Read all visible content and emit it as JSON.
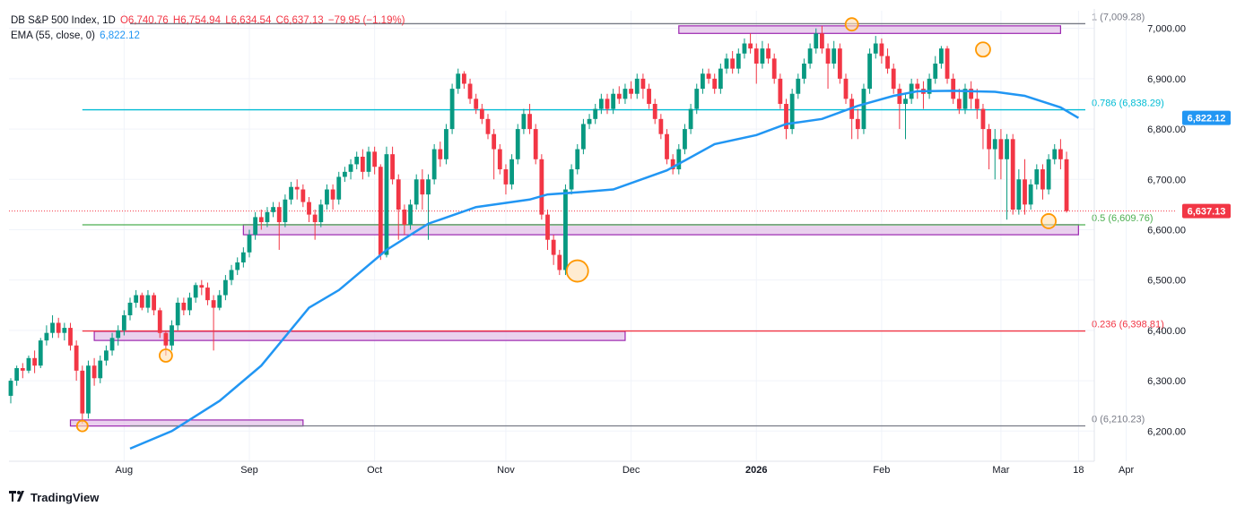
{
  "header": {
    "symbol": "DB S&P 500 Index, 1D",
    "ohlc": [
      "O6,740.76",
      "H6,754.94",
      "L6,634.54",
      "C6,637.13",
      "−79.95 (−1.19%)"
    ],
    "ema_label": "EMA (55, close, 0)",
    "ema_value": "6,822.12"
  },
  "footer": {
    "brand": "TradingView",
    "logo": "tradingview-logo-icon"
  },
  "chart_data": {
    "type": "candlestick",
    "title": "DB S&P 500 Index, 1D",
    "ylim": [
      6140,
      7035
    ],
    "yticks": [
      6200,
      6300,
      6400,
      6500,
      6600,
      6700,
      6800,
      6900,
      7000
    ],
    "ytick_labels": [
      "6,200.00",
      "6,300.00",
      "6,400.00",
      "6,500.00",
      "6,600.00",
      "6,700.00",
      "6,800.00",
      "6,900.00",
      "7,000.00"
    ],
    "xticks": [
      {
        "label": "Aug",
        "idx": 19
      },
      {
        "label": "Sep",
        "idx": 40
      },
      {
        "label": "Oct",
        "idx": 61
      },
      {
        "label": "Nov",
        "idx": 83
      },
      {
        "label": "Dec",
        "idx": 104
      },
      {
        "label": "2026",
        "idx": 125,
        "bold": true
      },
      {
        "label": "Feb",
        "idx": 146
      },
      {
        "label": "Mar",
        "idx": 166
      },
      {
        "label": "18",
        "idx": 179
      },
      {
        "label": "Apr",
        "idx": 187
      }
    ],
    "colors": {
      "up": "#089981",
      "down": "#f23645",
      "ema": "#2196f3",
      "zone_fill": "#e1bee7",
      "zone_stroke": "#9c27b0",
      "marker": "#ff9800"
    },
    "ema": [
      [
        20,
        6165
      ],
      [
        27,
        6200
      ],
      [
        35,
        6260
      ],
      [
        42,
        6330
      ],
      [
        50,
        6445
      ],
      [
        55,
        6480
      ],
      [
        63,
        6560
      ],
      [
        70,
        6612
      ],
      [
        72,
        6620
      ],
      [
        78,
        6645
      ],
      [
        87,
        6660
      ],
      [
        90,
        6670
      ],
      [
        96,
        6675
      ],
      [
        101,
        6680
      ],
      [
        110,
        6718
      ],
      [
        118,
        6770
      ],
      [
        125,
        6788
      ],
      [
        130,
        6810
      ],
      [
        136,
        6820
      ],
      [
        142,
        6846
      ],
      [
        148,
        6866
      ],
      [
        152,
        6875
      ],
      [
        158,
        6876
      ],
      [
        165,
        6874
      ],
      [
        170,
        6866
      ],
      [
        176,
        6843
      ],
      [
        179,
        6822
      ]
    ],
    "fib_levels": [
      {
        "ratio": "1",
        "value": 7009.28,
        "label": "1 (7,009.28)",
        "color": "#787b86",
        "from_idx": 20
      },
      {
        "ratio": "0.786",
        "value": 6838.29,
        "label": "0.786 (6,838.29)",
        "color": "#00bcd4",
        "from_idx": 12
      },
      {
        "ratio": "0.5",
        "value": 6609.76,
        "label": "0.5 (6,609.76)",
        "color": "#4caf50",
        "from_idx": 12
      },
      {
        "ratio": "0.236",
        "value": 6398.81,
        "label": "0.236 (6,398.81)",
        "color": "#f23645",
        "from_idx": 12
      },
      {
        "ratio": "0",
        "value": 6210.23,
        "label": "0 (6,210.23)",
        "color": "#787b86",
        "from_idx": 20
      }
    ],
    "zones": [
      {
        "from_idx": 112,
        "to_idx": 176,
        "y_top": 7005,
        "y_bottom": 6990
      },
      {
        "from_idx": 39,
        "to_idx": 179,
        "y_top": 6610,
        "y_bottom": 6590
      },
      {
        "from_idx": 14,
        "to_idx": 103,
        "y_top": 6398,
        "y_bottom": 6380
      },
      {
        "from_idx": 10,
        "to_idx": 49,
        "y_top": 6222,
        "y_bottom": 6210
      }
    ],
    "markers": [
      {
        "idx": 12,
        "value": 6210,
        "r": 6
      },
      {
        "idx": 26,
        "value": 6350,
        "r": 7
      },
      {
        "idx": 95,
        "value": 6518,
        "r": 12
      },
      {
        "idx": 141,
        "value": 7008,
        "r": 7
      },
      {
        "idx": 163,
        "value": 6958,
        "r": 8
      },
      {
        "idx": 174,
        "value": 6617,
        "r": 8
      }
    ],
    "last_price": {
      "value": 6637.13,
      "label": "6,637.13",
      "color": "#f23645"
    },
    "ema_tag": {
      "value": 6822.12,
      "label": "6,822.12",
      "color": "#2196f3"
    },
    "candles": [
      [
        6270,
        6300,
        6255,
        6305
      ],
      [
        6300,
        6325,
        6290,
        6330
      ],
      [
        6325,
        6320,
        6305,
        6335
      ],
      [
        6320,
        6345,
        6315,
        6350
      ],
      [
        6345,
        6330,
        6315,
        6360
      ],
      [
        6330,
        6380,
        6325,
        6385
      ],
      [
        6380,
        6395,
        6370,
        6410
      ],
      [
        6395,
        6415,
        6385,
        6430
      ],
      [
        6415,
        6395,
        6385,
        6425
      ],
      [
        6395,
        6405,
        6380,
        6415
      ],
      [
        6405,
        6370,
        6360,
        6415
      ],
      [
        6370,
        6320,
        6300,
        6380
      ],
      [
        6320,
        6235,
        6215,
        6330
      ],
      [
        6235,
        6330,
        6225,
        6340
      ],
      [
        6330,
        6305,
        6290,
        6345
      ],
      [
        6305,
        6340,
        6295,
        6350
      ],
      [
        6340,
        6360,
        6330,
        6370
      ],
      [
        6360,
        6385,
        6350,
        6395
      ],
      [
        6385,
        6400,
        6370,
        6410
      ],
      [
        6400,
        6430,
        6390,
        6440
      ],
      [
        6430,
        6455,
        6420,
        6465
      ],
      [
        6455,
        6470,
        6445,
        6480
      ],
      [
        6470,
        6445,
        6440,
        6475
      ],
      [
        6445,
        6470,
        6435,
        6480
      ],
      [
        6470,
        6440,
        6430,
        6475
      ],
      [
        6440,
        6395,
        6385,
        6445
      ],
      [
        6395,
        6370,
        6350,
        6400
      ],
      [
        6370,
        6410,
        6360,
        6420
      ],
      [
        6410,
        6455,
        6400,
        6465
      ],
      [
        6455,
        6440,
        6430,
        6465
      ],
      [
        6440,
        6465,
        6430,
        6475
      ],
      [
        6465,
        6490,
        6455,
        6495
      ],
      [
        6490,
        6485,
        6470,
        6500
      ],
      [
        6485,
        6460,
        6450,
        6495
      ],
      [
        6460,
        6445,
        6360,
        6470
      ],
      [
        6445,
        6470,
        6440,
        6480
      ],
      [
        6470,
        6500,
        6460,
        6510
      ],
      [
        6500,
        6520,
        6490,
        6530
      ],
      [
        6520,
        6535,
        6510,
        6545
      ],
      [
        6535,
        6555,
        6525,
        6565
      ],
      [
        6555,
        6590,
        6545,
        6600
      ],
      [
        6590,
        6625,
        6580,
        6635
      ],
      [
        6625,
        6615,
        6600,
        6640
      ],
      [
        6615,
        6635,
        6605,
        6645
      ],
      [
        6635,
        6645,
        6625,
        6655
      ],
      [
        6645,
        6615,
        6560,
        6655
      ],
      [
        6615,
        6660,
        6605,
        6670
      ],
      [
        6660,
        6685,
        6650,
        6695
      ],
      [
        6685,
        6680,
        6660,
        6700
      ],
      [
        6680,
        6655,
        6645,
        6690
      ],
      [
        6655,
        6630,
        6615,
        6665
      ],
      [
        6630,
        6615,
        6580,
        6640
      ],
      [
        6615,
        6650,
        6605,
        6660
      ],
      [
        6650,
        6680,
        6640,
        6690
      ],
      [
        6680,
        6660,
        6640,
        6690
      ],
      [
        6660,
        6705,
        6650,
        6715
      ],
      [
        6705,
        6715,
        6695,
        6725
      ],
      [
        6715,
        6730,
        6700,
        6740
      ],
      [
        6730,
        6745,
        6720,
        6755
      ],
      [
        6745,
        6715,
        6700,
        6760
      ],
      [
        6715,
        6755,
        6705,
        6765
      ],
      [
        6755,
        6725,
        6710,
        6765
      ],
      [
        6725,
        6550,
        6540,
        6730
      ],
      [
        6550,
        6750,
        6545,
        6765
      ],
      [
        6750,
        6700,
        6690,
        6765
      ],
      [
        6700,
        6640,
        6580,
        6710
      ],
      [
        6640,
        6610,
        6590,
        6650
      ],
      [
        6610,
        6650,
        6600,
        6660
      ],
      [
        6650,
        6700,
        6640,
        6710
      ],
      [
        6700,
        6670,
        6640,
        6720
      ],
      [
        6670,
        6700,
        6580,
        6710
      ],
      [
        6700,
        6760,
        6690,
        6770
      ],
      [
        6760,
        6740,
        6725,
        6775
      ],
      [
        6740,
        6800,
        6730,
        6810
      ],
      [
        6800,
        6880,
        6790,
        6890
      ],
      [
        6880,
        6910,
        6870,
        6920
      ],
      [
        6910,
        6890,
        6880,
        6915
      ],
      [
        6890,
        6860,
        6850,
        6900
      ],
      [
        6860,
        6840,
        6830,
        6870
      ],
      [
        6840,
        6820,
        6810,
        6850
      ],
      [
        6820,
        6790,
        6780,
        6830
      ],
      [
        6790,
        6760,
        6700,
        6800
      ],
      [
        6760,
        6720,
        6710,
        6770
      ],
      [
        6720,
        6690,
        6670,
        6730
      ],
      [
        6690,
        6740,
        6680,
        6750
      ],
      [
        6740,
        6800,
        6730,
        6810
      ],
      [
        6800,
        6830,
        6790,
        6840
      ],
      [
        6830,
        6800,
        6790,
        6850
      ],
      [
        6800,
        6740,
        6730,
        6810
      ],
      [
        6740,
        6630,
        6620,
        6750
      ],
      [
        6630,
        6580,
        6560,
        6640
      ],
      [
        6580,
        6550,
        6530,
        6590
      ],
      [
        6550,
        6520,
        6510,
        6560
      ],
      [
        6520,
        6680,
        6510,
        6690
      ],
      [
        6680,
        6720,
        6670,
        6730
      ],
      [
        6720,
        6760,
        6710,
        6770
      ],
      [
        6760,
        6810,
        6750,
        6820
      ],
      [
        6810,
        6820,
        6800,
        6830
      ],
      [
        6820,
        6840,
        6810,
        6850
      ],
      [
        6840,
        6860,
        6830,
        6870
      ],
      [
        6860,
        6840,
        6830,
        6870
      ],
      [
        6840,
        6870,
        6830,
        6880
      ],
      [
        6870,
        6860,
        6850,
        6885
      ],
      [
        6860,
        6880,
        6850,
        6890
      ],
      [
        6880,
        6870,
        6860,
        6895
      ],
      [
        6870,
        6900,
        6860,
        6910
      ],
      [
        6900,
        6880,
        6860,
        6910
      ],
      [
        6880,
        6850,
        6840,
        6890
      ],
      [
        6850,
        6820,
        6810,
        6860
      ],
      [
        6820,
        6790,
        6780,
        6830
      ],
      [
        6790,
        6740,
        6730,
        6800
      ],
      [
        6740,
        6720,
        6710,
        6750
      ],
      [
        6720,
        6760,
        6710,
        6770
      ],
      [
        6760,
        6800,
        6750,
        6810
      ],
      [
        6800,
        6840,
        6790,
        6850
      ],
      [
        6840,
        6880,
        6830,
        6890
      ],
      [
        6880,
        6910,
        6870,
        6920
      ],
      [
        6910,
        6900,
        6890,
        6920
      ],
      [
        6900,
        6880,
        6870,
        6910
      ],
      [
        6880,
        6920,
        6870,
        6930
      ],
      [
        6920,
        6940,
        6910,
        6950
      ],
      [
        6940,
        6920,
        6910,
        6955
      ],
      [
        6920,
        6950,
        6910,
        6960
      ],
      [
        6950,
        6970,
        6940,
        6980
      ],
      [
        6970,
        6960,
        6950,
        6990
      ],
      [
        6960,
        6930,
        6890,
        6970
      ],
      [
        6930,
        6960,
        6920,
        6975
      ],
      [
        6960,
        6940,
        6930,
        6970
      ],
      [
        6940,
        6900,
        6890,
        6950
      ],
      [
        6900,
        6850,
        6840,
        6910
      ],
      [
        6850,
        6800,
        6780,
        6860
      ],
      [
        6800,
        6870,
        6790,
        6880
      ],
      [
        6870,
        6900,
        6860,
        6910
      ],
      [
        6900,
        6930,
        6890,
        6940
      ],
      [
        6930,
        6960,
        6920,
        6970
      ],
      [
        6960,
        6990,
        6950,
        7000
      ],
      [
        6990,
        6960,
        6950,
        7005
      ],
      [
        6960,
        6930,
        6880,
        6970
      ],
      [
        6930,
        6960,
        6920,
        6975
      ],
      [
        6960,
        6900,
        6890,
        6970
      ],
      [
        6900,
        6860,
        6850,
        6910
      ],
      [
        6860,
        6820,
        6780,
        6870
      ],
      [
        6820,
        6800,
        6780,
        6840
      ],
      [
        6800,
        6880,
        6790,
        6890
      ],
      [
        6880,
        6950,
        6870,
        6960
      ],
      [
        6950,
        6970,
        6940,
        6985
      ],
      [
        6970,
        6945,
        6930,
        6980
      ],
      [
        6945,
        6920,
        6910,
        6960
      ],
      [
        6920,
        6880,
        6870,
        6930
      ],
      [
        6880,
        6850,
        6800,
        6890
      ],
      [
        6850,
        6860,
        6780,
        6870
      ],
      [
        6860,
        6890,
        6850,
        6900
      ],
      [
        6890,
        6880,
        6860,
        6900
      ],
      [
        6880,
        6870,
        6840,
        6895
      ],
      [
        6870,
        6900,
        6860,
        6910
      ],
      [
        6900,
        6930,
        6890,
        6945
      ],
      [
        6930,
        6960,
        6920,
        6965
      ],
      [
        6960,
        6900,
        6890,
        6965
      ],
      [
        6900,
        6860,
        6850,
        6910
      ],
      [
        6860,
        6840,
        6830,
        6880
      ],
      [
        6840,
        6880,
        6830,
        6890
      ],
      [
        6880,
        6860,
        6840,
        6895
      ],
      [
        6860,
        6840,
        6820,
        6880
      ],
      [
        6840,
        6800,
        6760,
        6850
      ],
      [
        6800,
        6760,
        6720,
        6810
      ],
      [
        6760,
        6780,
        6700,
        6800
      ],
      [
        6780,
        6740,
        6700,
        6800
      ],
      [
        6740,
        6780,
        6620,
        6790
      ],
      [
        6780,
        6640,
        6630,
        6790
      ],
      [
        6640,
        6700,
        6630,
        6720
      ],
      [
        6700,
        6650,
        6630,
        6740
      ],
      [
        6650,
        6690,
        6640,
        6700
      ],
      [
        6690,
        6720,
        6680,
        6730
      ],
      [
        6720,
        6680,
        6660,
        6730
      ],
      [
        6680,
        6740,
        6670,
        6750
      ],
      [
        6740,
        6760,
        6730,
        6770
      ],
      [
        6760,
        6740,
        6720,
        6780
      ],
      [
        6740,
        6637,
        6634,
        6755
      ]
    ]
  }
}
